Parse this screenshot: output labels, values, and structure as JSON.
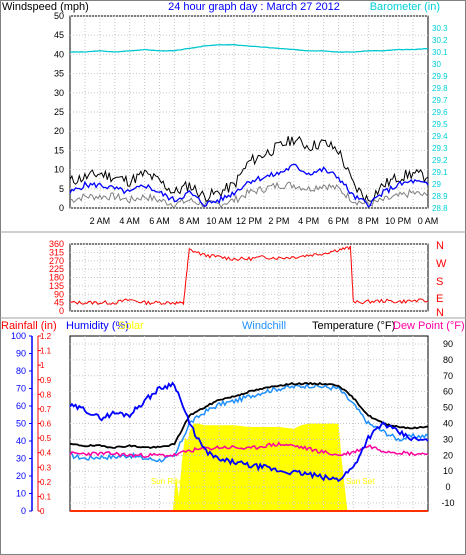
{
  "chart_data": [
    {
      "type": "line",
      "title": "24 hour graph day : March 27 2012",
      "ylabel": "Windspeed (mph)",
      "y2label": "Barometer (in)",
      "ylim": [
        0,
        50
      ],
      "y2lim": [
        28.8,
        30.4
      ],
      "x_ticks": [
        "2 AM",
        "4 AM",
        "6 AM",
        "8 AM",
        "10 AM",
        "12 PM",
        "2 PM",
        "4 PM",
        "6 PM",
        "8 PM",
        "10 PM",
        "0 AM"
      ],
      "y_ticks": [
        "0",
        "5",
        "10",
        "15",
        "20",
        "25",
        "30",
        "35",
        "40",
        "45",
        "50"
      ],
      "y2_ticks": [
        "28.8",
        "28.9",
        "29",
        "29.1",
        "29.2",
        "29.3",
        "29.4",
        "29.5",
        "29.6",
        "29.7",
        "29.8",
        "29.9",
        "30",
        "30.1",
        "30.2",
        "30.3"
      ],
      "x": [
        0,
        1,
        2,
        3,
        4,
        5,
        6,
        7,
        8,
        9,
        10,
        11,
        12,
        13,
        14,
        15,
        16,
        17,
        18,
        19,
        20,
        21,
        22,
        23,
        24
      ],
      "series": [
        {
          "name": "Windspeed (mph)",
          "color": "#000000",
          "values": [
            7,
            8,
            9,
            8,
            7,
            9,
            7,
            4,
            6,
            3,
            4,
            6,
            12,
            14,
            16,
            18,
            16,
            17,
            15,
            6,
            2,
            6,
            8,
            9,
            8
          ]
        },
        {
          "name": "",
          "color": "#0000ff",
          "values": [
            4,
            6,
            6,
            5,
            4,
            6,
            4,
            2,
            4,
            1,
            2,
            4,
            7,
            8,
            9,
            11,
            9,
            10,
            8,
            3,
            1,
            4,
            6,
            7,
            6
          ]
        },
        {
          "name": "",
          "color": "#808080",
          "values": [
            2,
            3,
            3,
            3,
            2,
            3,
            2,
            1,
            2,
            1,
            1,
            2,
            4,
            5,
            6,
            6,
            5,
            6,
            5,
            2,
            1,
            2,
            3,
            4,
            3
          ]
        },
        {
          "name": "Barometer (in)",
          "color": "#00c8d0",
          "values": [
            30.1,
            30.1,
            30.11,
            30.1,
            30.11,
            30.12,
            30.11,
            30.11,
            30.13,
            30.15,
            30.16,
            30.16,
            30.15,
            30.14,
            30.13,
            30.12,
            30.11,
            30.11,
            30.1,
            30.1,
            30.11,
            30.11,
            30.12,
            30.12,
            30.13
          ]
        }
      ]
    },
    {
      "type": "line",
      "y_ticks": [
        "0",
        "45",
        "90",
        "135",
        "180",
        "225",
        "270",
        "315",
        "360"
      ],
      "ylim": [
        0,
        360
      ],
      "compass": [
        "N",
        "W",
        "S",
        "E",
        "N"
      ],
      "x": [
        0,
        1,
        2,
        3,
        4,
        5,
        6,
        7,
        7.6,
        8,
        9,
        10,
        11,
        12,
        13,
        14,
        15,
        16,
        17,
        18,
        18.8,
        19,
        20,
        21,
        22,
        23,
        24
      ],
      "series": [
        {
          "name": "",
          "color": "#ff0000",
          "values": [
            45,
            45,
            45,
            45,
            60,
            45,
            45,
            45,
            40,
            330,
            300,
            290,
            280,
            280,
            290,
            285,
            290,
            300,
            310,
            330,
            340,
            45,
            50,
            55,
            50,
            55,
            55
          ]
        }
      ]
    },
    {
      "type": "line",
      "legend": [
        "Rainfall (in)",
        "Humidity (%)",
        "Solar",
        "Windchill",
        "Temperature (°F)",
        "Dew Point (°F)"
      ],
      "y_ticks_humidity": [
        "0",
        "10",
        "20",
        "30",
        "40",
        "50",
        "60",
        "70",
        "80",
        "90",
        "100"
      ],
      "y_ticks_rain": [
        "0",
        "0.1",
        "0.2",
        "0.3",
        "0.4",
        "0.5",
        "0.6",
        "0.7",
        "0.8",
        "0.9",
        "1",
        "1.1",
        "1.2"
      ],
      "y_ticks_temp": [
        "-10",
        "0",
        "10",
        "20",
        "30",
        "40",
        "50",
        "60",
        "70",
        "80",
        "90"
      ],
      "humidity_lim": [
        0,
        100
      ],
      "rain_lim": [
        0,
        1.2
      ],
      "temp_lim": [
        -15,
        95
      ],
      "annotations": [
        "Sun Rise",
        "Sun Set"
      ],
      "x": [
        0,
        1,
        2,
        3,
        4,
        5,
        6,
        7,
        8,
        9,
        10,
        11,
        12,
        13,
        14,
        15,
        16,
        17,
        18,
        19,
        20,
        21,
        22,
        23,
        24
      ],
      "series": [
        {
          "name": "Temperature (°F)",
          "color": "#000000",
          "values": [
            27,
            26,
            26,
            25,
            26,
            25,
            25,
            27,
            45,
            50,
            55,
            57,
            60,
            62,
            64,
            65,
            65,
            65,
            64,
            56,
            45,
            40,
            38,
            37,
            38
          ]
        },
        {
          "name": "Windchill",
          "color": "#1e90ff",
          "values": [
            20,
            18,
            19,
            19,
            20,
            18,
            17,
            19,
            40,
            47,
            52,
            54,
            57,
            60,
            62,
            63,
            64,
            63,
            62,
            52,
            40,
            35,
            30,
            32,
            32
          ]
        },
        {
          "name": "Dew Point (°F)",
          "color": "#ff00a0",
          "values": [
            21,
            21,
            21,
            21,
            20,
            20,
            20,
            20,
            23,
            24,
            25,
            25,
            24,
            26,
            27,
            26,
            24,
            22,
            20,
            22,
            26,
            23,
            22,
            21,
            21
          ]
        },
        {
          "name": "Humidity (%)",
          "color": "#0000ff",
          "values": [
            60,
            58,
            53,
            56,
            55,
            63,
            70,
            73,
            50,
            35,
            29,
            28,
            26,
            25,
            23,
            22,
            21,
            19,
            18,
            25,
            42,
            50,
            45,
            41,
            40
          ]
        },
        {
          "name": "Rainfall (in)",
          "color": "#ff3000",
          "values": [
            0,
            0,
            0,
            0,
            0,
            0,
            0,
            0,
            0,
            0,
            0,
            0,
            0,
            0,
            0,
            0,
            0,
            0,
            0,
            0,
            0,
            0,
            0,
            0,
            0
          ]
        }
      ],
      "solar": {
        "color": "#ffff00",
        "x": [
          0,
          6.9,
          7.0,
          7.1,
          7.3,
          7.5,
          7.7,
          7.9,
          8.0,
          8.3,
          8.6,
          9,
          9.5,
          10,
          11,
          12,
          13,
          14,
          15,
          15.5,
          16,
          17,
          17.5,
          18,
          18.2,
          18.6,
          24
        ],
        "values": [
          0,
          0,
          10,
          20,
          8,
          28,
          42,
          40,
          45,
          50,
          50,
          49,
          49,
          49,
          49,
          48,
          48,
          48,
          47,
          49,
          50,
          50,
          50,
          50,
          30,
          0,
          0
        ]
      }
    }
  ]
}
